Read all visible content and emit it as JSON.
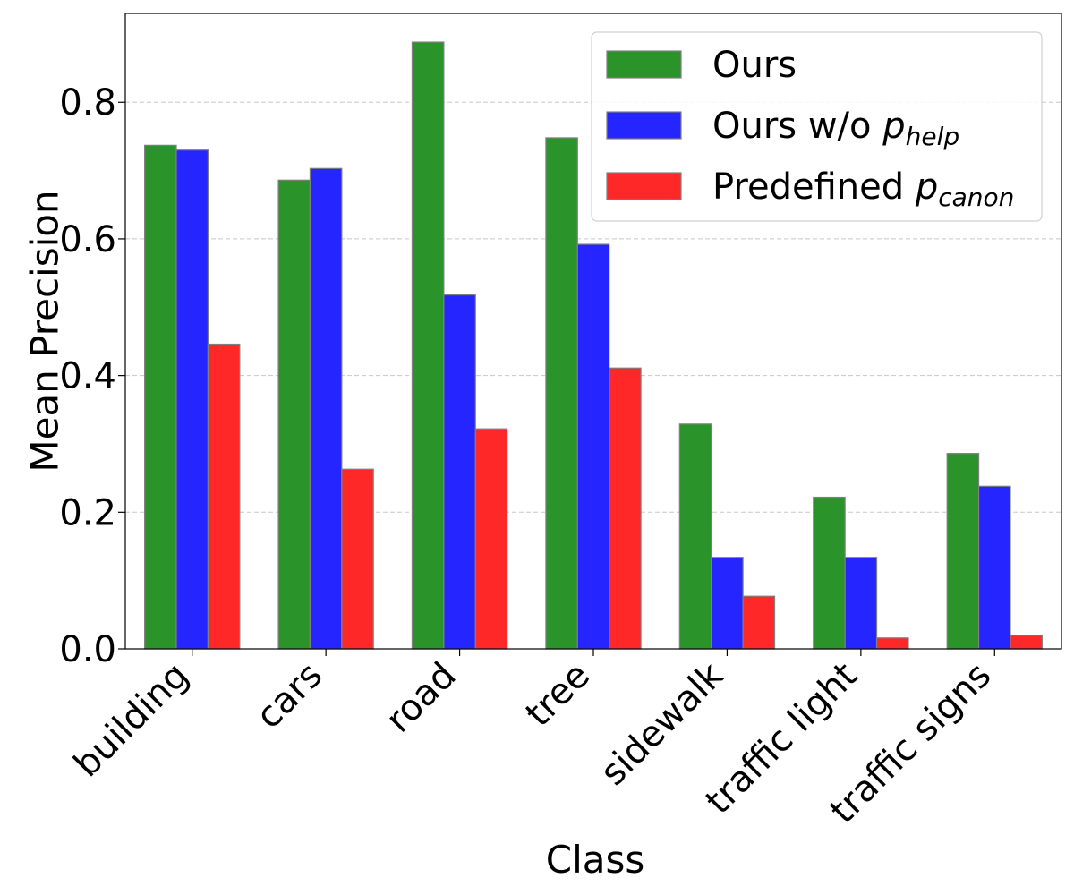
{
  "chart_data": {
    "type": "bar",
    "title": "",
    "xlabel": "Class",
    "ylabel": "Mean Precision",
    "ylim": [
      0,
      0.93
    ],
    "yticks": [
      "0.0",
      "0.2",
      "0.4",
      "0.6",
      "0.8"
    ],
    "grid": "horizontal dashed",
    "legend_position": "top-right",
    "categories": [
      "building",
      "cars",
      "road",
      "tree",
      "sidewalk",
      "traffic light",
      "traffic signs"
    ],
    "series": [
      {
        "name": "Ours",
        "legend_base": "Ours",
        "legend_sub": "",
        "color": "#2a942a",
        "values": [
          0.737,
          0.686,
          0.888,
          0.748,
          0.329,
          0.222,
          0.286
        ]
      },
      {
        "name": "Ours w/o p_help",
        "legend_base": "Ours w/o p",
        "legend_sub": "help",
        "color": "#2525ff",
        "values": [
          0.73,
          0.703,
          0.518,
          0.592,
          0.134,
          0.134,
          0.238
        ]
      },
      {
        "name": "Predefined p_canon",
        "legend_base": "Predefined p",
        "legend_sub": "canon",
        "color": "#ff2828",
        "values": [
          0.446,
          0.263,
          0.322,
          0.411,
          0.077,
          0.016,
          0.02
        ]
      }
    ]
  }
}
